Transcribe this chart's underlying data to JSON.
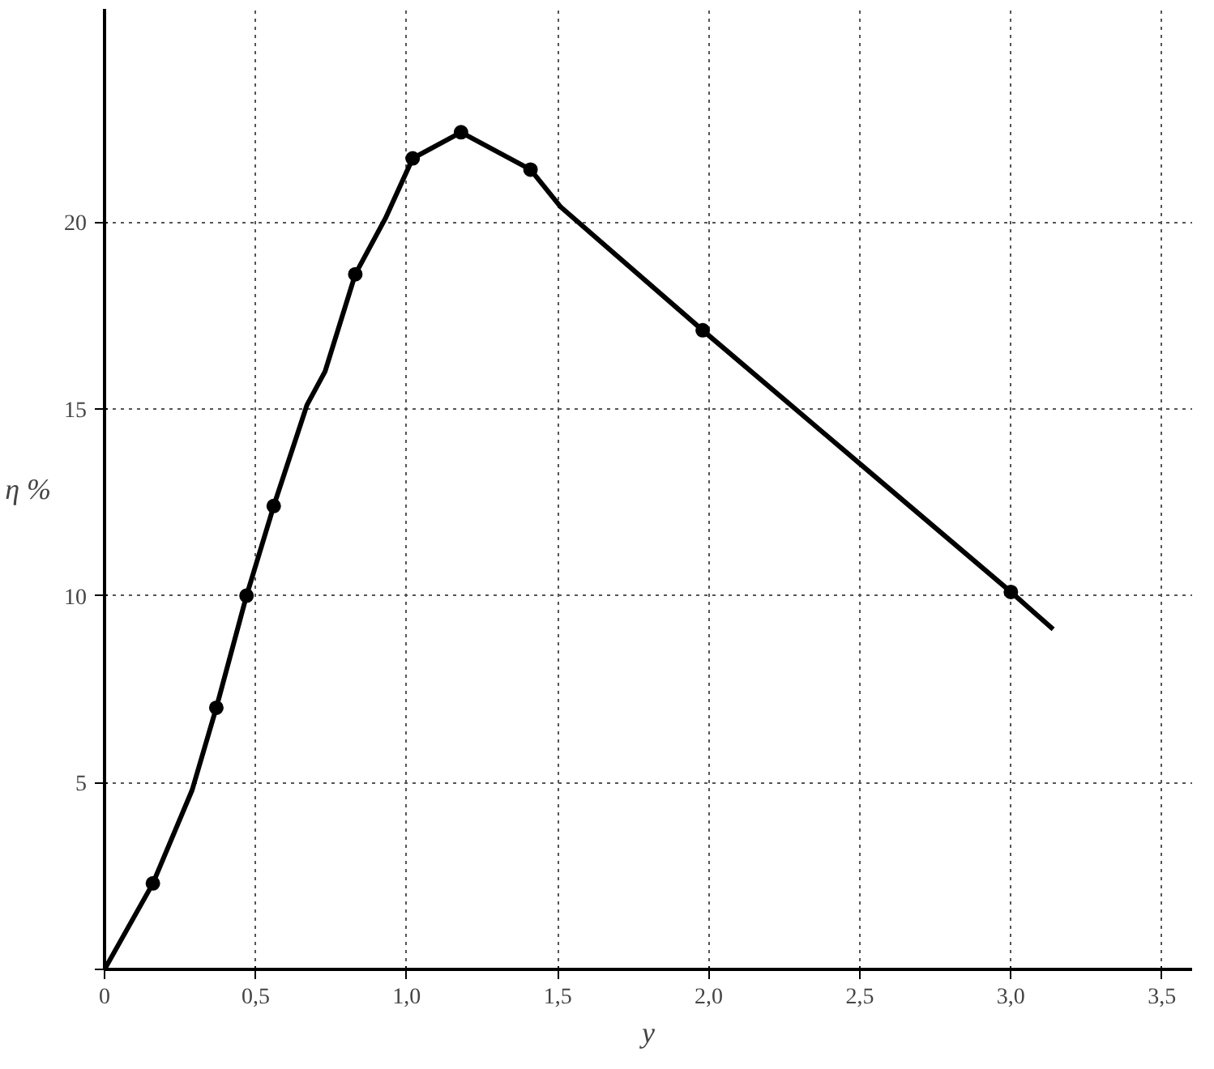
{
  "chart_data": {
    "type": "line",
    "xlabel": "y",
    "ylabel": "η %",
    "xlim": [
      0,
      3.6
    ],
    "ylim": [
      0,
      25.7
    ],
    "xticks": [
      0,
      {
        "value": 0.5,
        "label": "0,5"
      },
      {
        "value": 1.0,
        "label": "1,0"
      },
      {
        "value": 1.5,
        "label": "1,5"
      },
      {
        "value": 2.0,
        "label": "2,0"
      },
      {
        "value": 2.5,
        "label": "2,5"
      },
      {
        "value": 3.0,
        "label": "3,0"
      },
      {
        "value": 3.5,
        "label": "3,5"
      }
    ],
    "yticks": [
      {
        "value": 0,
        "label": null
      },
      5,
      10,
      15,
      20
    ],
    "grid": true,
    "series": [
      {
        "color": "#000000",
        "marker": "none",
        "x": [
          0,
          0.16,
          0.29,
          0.37,
          0.47,
          0.56,
          0.67,
          0.73,
          0.83,
          0.93,
          1.02,
          1.18,
          1.41,
          1.51,
          1.98,
          2.49,
          3.0,
          3.14
        ],
        "values": [
          0,
          2.3,
          4.8,
          7.0,
          10,
          12.4,
          15.1,
          16,
          18.6,
          20.1,
          21.7,
          22.4,
          21.4,
          20.4,
          17.1,
          13.6,
          10.1,
          9.1
        ]
      },
      {
        "type": "scatter",
        "color": "#000000",
        "marker": "circle",
        "x": [
          0.16,
          0.37,
          0.47,
          0.56,
          0.83,
          1.02,
          1.18,
          1.41,
          1.98,
          3.0
        ],
        "values": [
          2.3,
          7.0,
          10,
          12.4,
          18.6,
          21.7,
          22.4,
          21.4,
          17.1,
          10.1
        ]
      }
    ]
  }
}
